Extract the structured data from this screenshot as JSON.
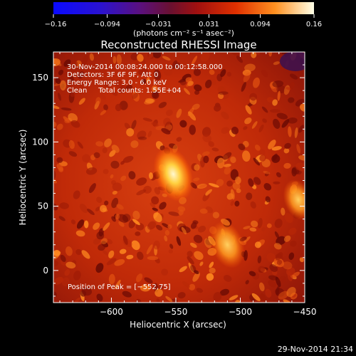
{
  "chart_data": {
    "type": "heatmap",
    "title": "Reconstructed RHESSI Image",
    "xlabel": "Heliocentric X (arcsec)",
    "ylabel": "Heliocentric Y (arcsec)",
    "xlim": [
      -645,
      -450
    ],
    "ylim": [
      -25,
      170
    ],
    "xticks": [
      -600,
      -550,
      -500,
      -450
    ],
    "xtick_labels": [
      "−600",
      "−550",
      "−500",
      "−450"
    ],
    "yticks": [
      0,
      50,
      100,
      150
    ],
    "ytick_labels": [
      "0",
      "50",
      "100",
      "150"
    ],
    "colorbar": {
      "min": -0.16,
      "max": 0.16,
      "ticks": [
        -0.16,
        -0.094,
        -0.031,
        0.031,
        0.094,
        0.16
      ],
      "tick_labels": [
        "−0.16",
        "−0.094",
        "−0.031",
        "0.031",
        "0.094",
        "0.16"
      ],
      "units_label": "(photons cm⁻² s⁻¹ asec⁻²)"
    },
    "annotations": [
      "30-Nov-2014 00:08:24.000 to 00:12:58.000",
      "Detectors: 3F 6F 9F, Att 0",
      "Energy Range: 3.0 - 6.0 keV",
      "Clean     Total counts: 1.55E+04"
    ],
    "peak_label": "Position of Peak = [−552,75]",
    "peak_position": [
      -552,
      75
    ],
    "sources": [
      {
        "x": -552,
        "y": 75,
        "intensity": 0.16
      },
      {
        "x": -510,
        "y": 20,
        "intensity": 0.12
      },
      {
        "x": -455,
        "y": 55,
        "intensity": 0.09
      }
    ]
  },
  "footer_timestamp": "29-Nov-2014 21:34"
}
